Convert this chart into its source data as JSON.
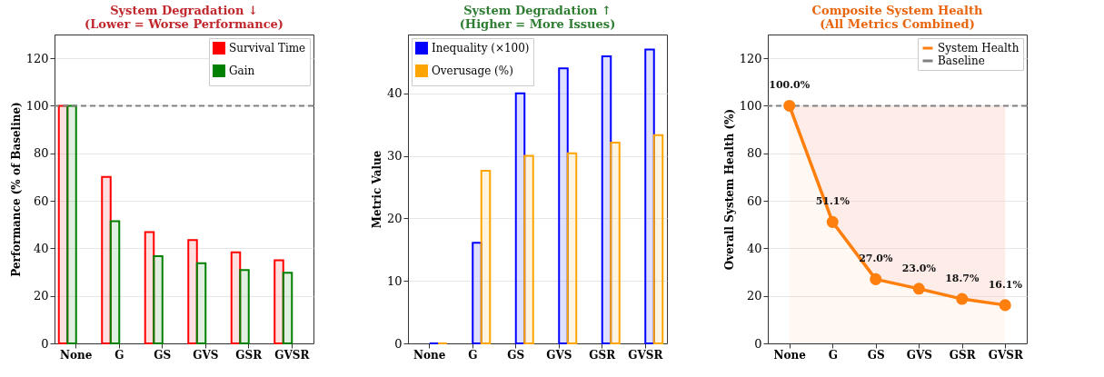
{
  "chart_data": [
    {
      "type": "bar",
      "title": "System Degradation ↓",
      "subtitle": "(Lower = Worse Performance)",
      "ylabel": "Performance (% of Baseline)",
      "categories": [
        "None",
        "G",
        "GS",
        "GVS",
        "GSR",
        "GVSR"
      ],
      "series": [
        {
          "name": "Survival Time",
          "color": "#ff0000",
          "values": [
            100,
            70.1,
            46.8,
            43.5,
            38.3,
            35.0
          ]
        },
        {
          "name": "Gain",
          "color": "#008000",
          "values": [
            100,
            51.4,
            36.7,
            33.7,
            30.9,
            29.7
          ]
        }
      ],
      "ylim": [
        0,
        130
      ],
      "yticks": [
        0,
        20,
        40,
        60,
        80,
        100,
        120
      ],
      "grid": "y",
      "legend": "top right",
      "ref_lines": [
        {
          "axis": "y",
          "value": 100,
          "color": "#808080",
          "line_style": "dashed"
        }
      ]
    },
    {
      "type": "bar",
      "title": "System Degradation ↑",
      "subtitle": "(Higher = More Issues)",
      "ylabel": "Metric Value",
      "categories": [
        "None",
        "G",
        "GS",
        "GVS",
        "GSR",
        "GVSR"
      ],
      "series": [
        {
          "name": "Inequality (×100)",
          "color": "#0000ff",
          "values": [
            0,
            16.1,
            40.0,
            44.0,
            45.9,
            47.0
          ]
        },
        {
          "name": "Overusage (%)",
          "color": "#ffa500",
          "values": [
            0,
            27.6,
            30.0,
            30.4,
            32.1,
            33.3
          ]
        }
      ],
      "ylim": [
        0,
        49.4
      ],
      "yticks": [
        0,
        10,
        20,
        30,
        40
      ],
      "grid": "y",
      "legend": "top left"
    },
    {
      "type": "line",
      "title": "Composite System Health",
      "subtitle": "(All Metrics Combined)",
      "ylabel": "Overall System Health (%)",
      "categories": [
        "None",
        "G",
        "GS",
        "GVS",
        "GSR",
        "GVSR"
      ],
      "series": [
        {
          "name": "System Health",
          "type": "area",
          "color": "#ff7f0e",
          "values": [
            100.0,
            51.1,
            27.0,
            23.0,
            18.7,
            16.1
          ],
          "lower": [
            100.0,
            51.1,
            27.0,
            23.0,
            18.7,
            16.1
          ],
          "upper": [
            100,
            100,
            100,
            100,
            100,
            100
          ],
          "value_labels": [
            "100.0%",
            "51.1%",
            "27.0%",
            "23.0%",
            "18.7%",
            "16.1%"
          ]
        }
      ],
      "marker": "circle",
      "line_style": "solid",
      "ylim": [
        0,
        130
      ],
      "yticks": [
        0,
        20,
        40,
        60,
        80,
        100,
        120
      ],
      "grid": "y",
      "legend": "top right",
      "ref_lines": [
        {
          "axis": "y",
          "value": 100,
          "label": "Baseline",
          "color": "#808080",
          "line_style": "dashed"
        }
      ]
    }
  ]
}
